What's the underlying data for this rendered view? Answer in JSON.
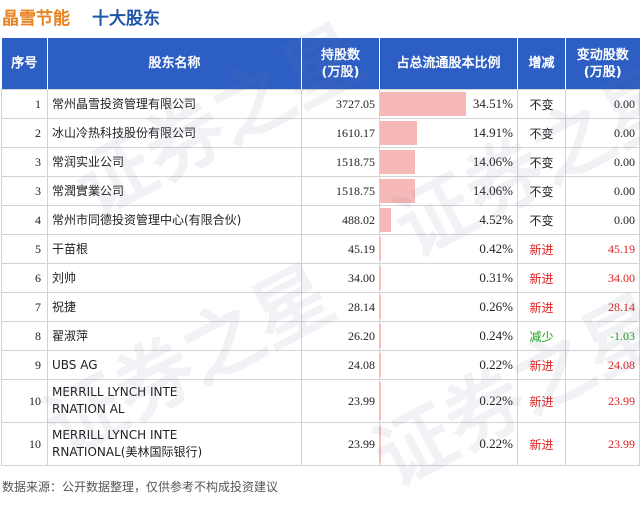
{
  "title": {
    "company": "晶雪节能",
    "subtitle": "十大股东"
  },
  "headers": {
    "index": "序号",
    "name": "股东名称",
    "shares_l1": "持股数",
    "shares_l2": "(万股)",
    "ratio": "占总流通股本比例",
    "change": "增减",
    "delta_l1": "变动股数",
    "delta_l2": "(万股)"
  },
  "rows": [
    {
      "index": "1",
      "name_l1": "常州晶雪投资管理有限公司",
      "name_l2": "",
      "shares": "3727.05",
      "ratio_text": "34.51%",
      "ratio_value": 34.51,
      "change": "不变",
      "change_type": "same",
      "delta": "0.00"
    },
    {
      "index": "2",
      "name_l1": "冰山冷热科技股份有限公司",
      "name_l2": "",
      "shares": "1610.17",
      "ratio_text": "14.91%",
      "ratio_value": 14.91,
      "change": "不变",
      "change_type": "same",
      "delta": "0.00"
    },
    {
      "index": "3",
      "name_l1": "常润实业公司",
      "name_l2": "",
      "shares": "1518.75",
      "ratio_text": "14.06%",
      "ratio_value": 14.06,
      "change": "不变",
      "change_type": "same",
      "delta": "0.00"
    },
    {
      "index": "3",
      "name_l1": "常潤實業公司",
      "name_l2": "",
      "shares": "1518.75",
      "ratio_text": "14.06%",
      "ratio_value": 14.06,
      "change": "不变",
      "change_type": "same",
      "delta": "0.00"
    },
    {
      "index": "4",
      "name_l1": "常州市同德投资管理中心(有限合伙)",
      "name_l2": "",
      "shares": "488.02",
      "ratio_text": "4.52%",
      "ratio_value": 4.52,
      "change": "不变",
      "change_type": "same",
      "delta": "0.00"
    },
    {
      "index": "5",
      "name_l1": "干苗根",
      "name_l2": "",
      "shares": "45.19",
      "ratio_text": "0.42%",
      "ratio_value": 0.42,
      "change": "新进",
      "change_type": "up",
      "delta": "45.19"
    },
    {
      "index": "6",
      "name_l1": "刘帅",
      "name_l2": "",
      "shares": "34.00",
      "ratio_text": "0.31%",
      "ratio_value": 0.31,
      "change": "新进",
      "change_type": "up",
      "delta": "34.00"
    },
    {
      "index": "7",
      "name_l1": "祝捷",
      "name_l2": "",
      "shares": "28.14",
      "ratio_text": "0.26%",
      "ratio_value": 0.26,
      "change": "新进",
      "change_type": "up",
      "delta": "28.14"
    },
    {
      "index": "8",
      "name_l1": "翟淑萍",
      "name_l2": "",
      "shares": "26.20",
      "ratio_text": "0.24%",
      "ratio_value": 0.24,
      "change": "减少",
      "change_type": "down",
      "delta": "-1.03"
    },
    {
      "index": "9",
      "name_l1": "UBS AG",
      "name_l2": "",
      "shares": "24.08",
      "ratio_text": "0.22%",
      "ratio_value": 0.22,
      "change": "新进",
      "change_type": "up",
      "delta": "24.08"
    },
    {
      "index": "10",
      "name_l1": "MERRILL LYNCH INTE",
      "name_l2": "RNATION AL",
      "shares": "23.99",
      "ratio_text": "0.22%",
      "ratio_value": 0.22,
      "change": "新进",
      "change_type": "up",
      "delta": "23.99"
    },
    {
      "index": "10",
      "name_l1": "MERRILL LYNCH INTE",
      "name_l2": "RNATIONAL(美林国际银行)",
      "shares": "23.99",
      "ratio_text": "0.22%",
      "ratio_value": 0.22,
      "change": "新进",
      "change_type": "up",
      "delta": "23.99"
    }
  ],
  "ratio_bar_color": "#f7b8b8",
  "header_color": "#2d5ec4",
  "change_colors": {
    "up": "#e02020",
    "down": "#18a018",
    "same": "#222222"
  },
  "source_note": "数据来源：公开数据整理，仅供参考不构成投资建议"
}
